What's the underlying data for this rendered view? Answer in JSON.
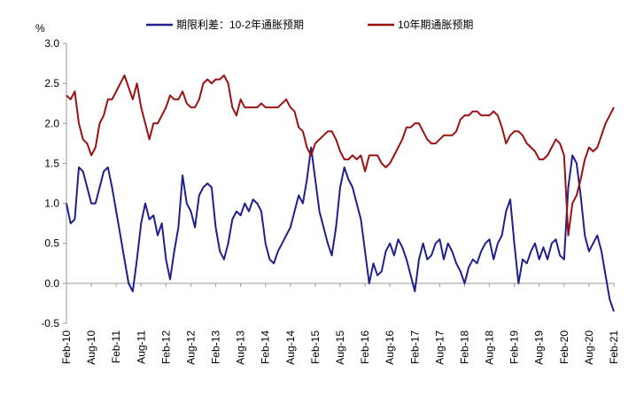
{
  "chart_data": {
    "type": "line",
    "y_unit": "%",
    "categories": [
      "Feb-10",
      null,
      null,
      null,
      null,
      null,
      "Aug-10",
      null,
      null,
      null,
      null,
      null,
      "Feb-11",
      null,
      null,
      null,
      null,
      null,
      "Aug-11",
      null,
      null,
      null,
      null,
      null,
      "Feb-12",
      null,
      null,
      null,
      null,
      null,
      "Aug-12",
      null,
      null,
      null,
      null,
      null,
      "Feb-13",
      null,
      null,
      null,
      null,
      null,
      "Aug-13",
      null,
      null,
      null,
      null,
      null,
      "Feb-14",
      null,
      null,
      null,
      null,
      null,
      "Aug-14",
      null,
      null,
      null,
      null,
      null,
      "Feb-15",
      null,
      null,
      null,
      null,
      null,
      "Aug-15",
      null,
      null,
      null,
      null,
      null,
      "Feb-16",
      null,
      null,
      null,
      null,
      null,
      "Aug-16",
      null,
      null,
      null,
      null,
      null,
      "Feb-17",
      null,
      null,
      null,
      null,
      null,
      "Aug-17",
      null,
      null,
      null,
      null,
      null,
      "Feb-18",
      null,
      null,
      null,
      null,
      null,
      "Aug-18",
      null,
      null,
      null,
      null,
      null,
      "Feb-19",
      null,
      null,
      null,
      null,
      null,
      "Aug-19",
      null,
      null,
      null,
      null,
      null,
      "Feb-20",
      null,
      null,
      null,
      null,
      null,
      "Aug-20",
      null,
      null,
      null,
      null,
      null,
      "Feb-21"
    ],
    "series": [
      {
        "name": "期限利差：10-2年通胀预期",
        "color": "#1f1f8f",
        "values": [
          1.0,
          0.75,
          0.8,
          1.45,
          1.4,
          1.2,
          1.0,
          1.0,
          1.2,
          1.4,
          1.45,
          1.2,
          0.9,
          0.6,
          0.3,
          0,
          -0.1,
          0.3,
          0.75,
          1.0,
          0.8,
          0.85,
          0.6,
          0.75,
          0.3,
          0.05,
          0.4,
          0.7,
          1.35,
          1.0,
          0.9,
          0.7,
          1.1,
          1.2,
          1.25,
          1.2,
          0.7,
          0.4,
          0.3,
          0.5,
          0.8,
          0.9,
          0.85,
          1.0,
          0.9,
          1.05,
          1.0,
          0.9,
          0.5,
          0.3,
          0.25,
          0.4,
          0.5,
          0.6,
          0.7,
          0.9,
          1.1,
          1.0,
          1.3,
          1.7,
          1.3,
          0.9,
          0.7,
          0.5,
          0.35,
          0.7,
          1.2,
          1.45,
          1.3,
          1.2,
          1.0,
          0.8,
          0.4,
          0,
          0.25,
          0.1,
          0.15,
          0.4,
          0.5,
          0.35,
          0.55,
          0.45,
          0.3,
          0.1,
          -0.1,
          0.3,
          0.5,
          0.3,
          0.35,
          0.5,
          0.55,
          0.3,
          0.5,
          0.4,
          0.25,
          0.15,
          0,
          0.2,
          0.3,
          0.25,
          0.4,
          0.5,
          0.55,
          0.3,
          0.5,
          0.6,
          0.9,
          1.05,
          0.5,
          0,
          0.3,
          0.25,
          0.4,
          0.5,
          0.3,
          0.45,
          0.3,
          0.5,
          0.55,
          0.35,
          0.3,
          1.2,
          1.6,
          1.5,
          1.1,
          0.6,
          0.4,
          0.5,
          0.6,
          0.4,
          0.1,
          -0.2,
          -0.35
        ]
      },
      {
        "name": "10年期通胀预期",
        "color": "#9b1010",
        "values": [
          2.35,
          2.3,
          2.4,
          2.0,
          1.8,
          1.75,
          1.6,
          1.7,
          2.0,
          2.1,
          2.3,
          2.3,
          2.4,
          2.5,
          2.6,
          2.45,
          2.3,
          2.5,
          2.2,
          2.0,
          1.8,
          2.0,
          2.0,
          2.1,
          2.2,
          2.35,
          2.3,
          2.3,
          2.4,
          2.25,
          2.2,
          2.2,
          2.3,
          2.5,
          2.55,
          2.5,
          2.55,
          2.55,
          2.6,
          2.5,
          2.2,
          2.1,
          2.3,
          2.2,
          2.2,
          2.2,
          2.2,
          2.25,
          2.2,
          2.2,
          2.2,
          2.2,
          2.25,
          2.3,
          2.2,
          2.15,
          1.95,
          1.9,
          1.7,
          1.6,
          1.75,
          1.8,
          1.85,
          1.9,
          1.9,
          1.8,
          1.65,
          1.55,
          1.55,
          1.6,
          1.55,
          1.6,
          1.4,
          1.6,
          1.6,
          1.6,
          1.5,
          1.45,
          1.5,
          1.6,
          1.7,
          1.8,
          1.95,
          1.95,
          2.0,
          2.0,
          1.9,
          1.8,
          1.75,
          1.75,
          1.8,
          1.85,
          1.85,
          1.85,
          1.9,
          2.05,
          2.1,
          2.1,
          2.15,
          2.15,
          2.1,
          2.1,
          2.1,
          2.15,
          2.1,
          1.95,
          1.75,
          1.85,
          1.9,
          1.9,
          1.85,
          1.75,
          1.7,
          1.65,
          1.55,
          1.55,
          1.6,
          1.7,
          1.8,
          1.75,
          1.6,
          0.6,
          1.0,
          1.1,
          1.3,
          1.55,
          1.7,
          1.65,
          1.7,
          1.85,
          2.0,
          2.1,
          2.2
        ]
      }
    ],
    "ylim": [
      -0.5,
      3.0
    ],
    "yticks": [
      {
        "value": 3.0,
        "label": "3.0"
      },
      {
        "value": 2.5,
        "label": "2.5"
      },
      {
        "value": 2.0,
        "label": "2.0"
      },
      {
        "value": 1.5,
        "label": "1.5"
      },
      {
        "value": 1.0,
        "label": "1.0"
      },
      {
        "value": 0.5,
        "label": "0.5"
      },
      {
        "value": 0.0,
        "label": "0.0"
      },
      {
        "value": -0.5,
        "label": "-0.5"
      }
    ],
    "legend": "top"
  }
}
